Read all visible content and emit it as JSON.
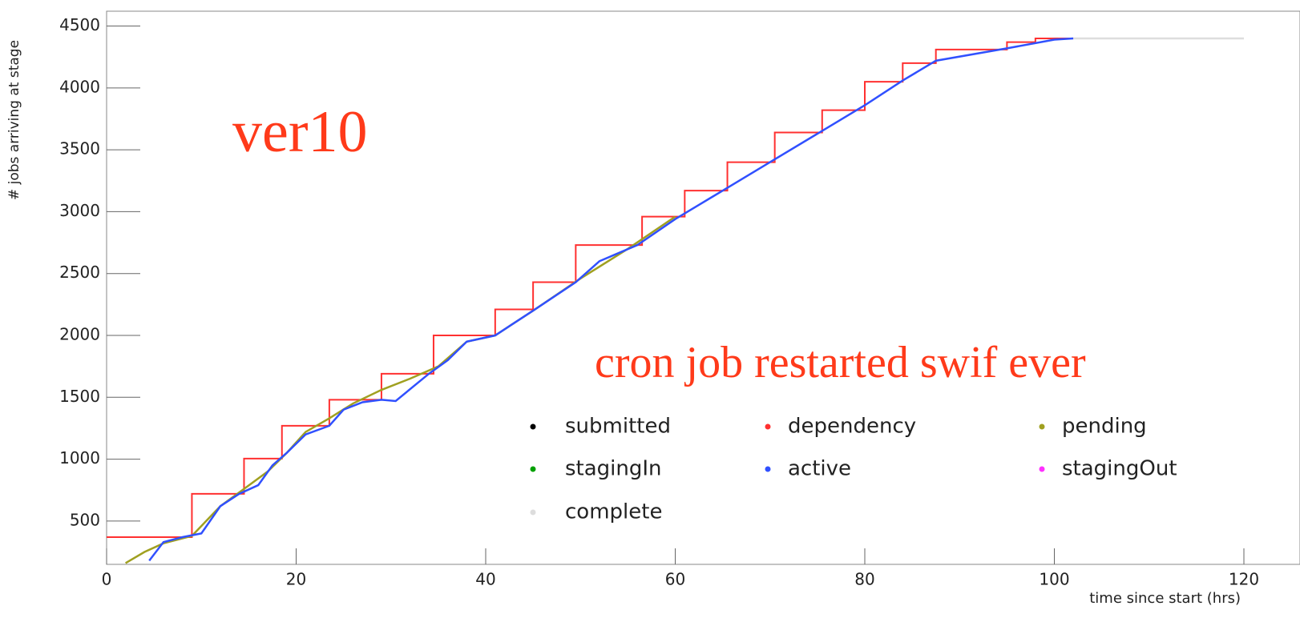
{
  "chart_data": {
    "type": "line",
    "xlabel": "time since start (hrs)",
    "ylabel": "# jobs arriving at stage",
    "annotations": [
      "ver10",
      "cron job restarted swif ever"
    ],
    "xlim": [
      0,
      120
    ],
    "xticks": [
      0,
      20,
      40,
      60,
      80,
      100,
      120
    ],
    "ylim": [
      150,
      4620
    ],
    "yticks": [
      500,
      1000,
      1500,
      2000,
      2500,
      3000,
      3500,
      4000,
      4500
    ],
    "grid": false,
    "series": [
      {
        "name": "submitted",
        "color": "#000000",
        "x": [],
        "values": []
      },
      {
        "name": "dependency",
        "color": "#ff3030",
        "step": true,
        "x": [
          0,
          9,
          14.5,
          18.5,
          23.5,
          29,
          34.5,
          41,
          45,
          49.5,
          56.5,
          61,
          65.5,
          70.5,
          75.5,
          80,
          84,
          87.5,
          95,
          98,
          102
        ],
        "values": [
          370,
          720,
          1005,
          1270,
          1480,
          1690,
          2000,
          2210,
          2430,
          2730,
          2960,
          3170,
          3400,
          3640,
          3820,
          4050,
          4200,
          4310,
          4370,
          4400,
          4400
        ]
      },
      {
        "name": "pending",
        "color": "#a0a020",
        "x": [
          2,
          4,
          6,
          9,
          12,
          14.5,
          17,
          19,
          21,
          23.5,
          26,
          29,
          32,
          35,
          38,
          41,
          45,
          50,
          55,
          60
        ],
        "values": [
          160,
          250,
          320,
          380,
          620,
          760,
          900,
          1050,
          1220,
          1330,
          1450,
          1560,
          1650,
          1750,
          1950,
          2000,
          2200,
          2460,
          2700,
          2960
        ]
      },
      {
        "name": "stagingIn",
        "color": "#00a000",
        "x": [],
        "values": []
      },
      {
        "name": "active",
        "color": "#3050ff",
        "x": [
          4.5,
          6,
          8,
          10,
          12,
          14,
          16,
          17.5,
          19,
          21,
          23.5,
          25,
          27,
          29,
          30.5,
          34,
          36,
          38,
          41,
          45,
          49.5,
          52,
          56,
          60,
          65,
          70,
          75,
          80,
          84,
          87.5,
          95,
          100,
          102
        ],
        "values": [
          180,
          330,
          370,
          400,
          620,
          720,
          790,
          950,
          1050,
          1200,
          1270,
          1400,
          1460,
          1480,
          1470,
          1690,
          1800,
          1950,
          2000,
          2200,
          2430,
          2600,
          2730,
          2940,
          3170,
          3400,
          3630,
          3860,
          4060,
          4220,
          4320,
          4390,
          4400
        ]
      },
      {
        "name": "stagingOut",
        "color": "#ff30ff",
        "x": [],
        "values": []
      },
      {
        "name": "complete",
        "color": "#dddddd",
        "x": [
          102,
          120
        ],
        "values": [
          4400,
          4400
        ]
      }
    ]
  }
}
